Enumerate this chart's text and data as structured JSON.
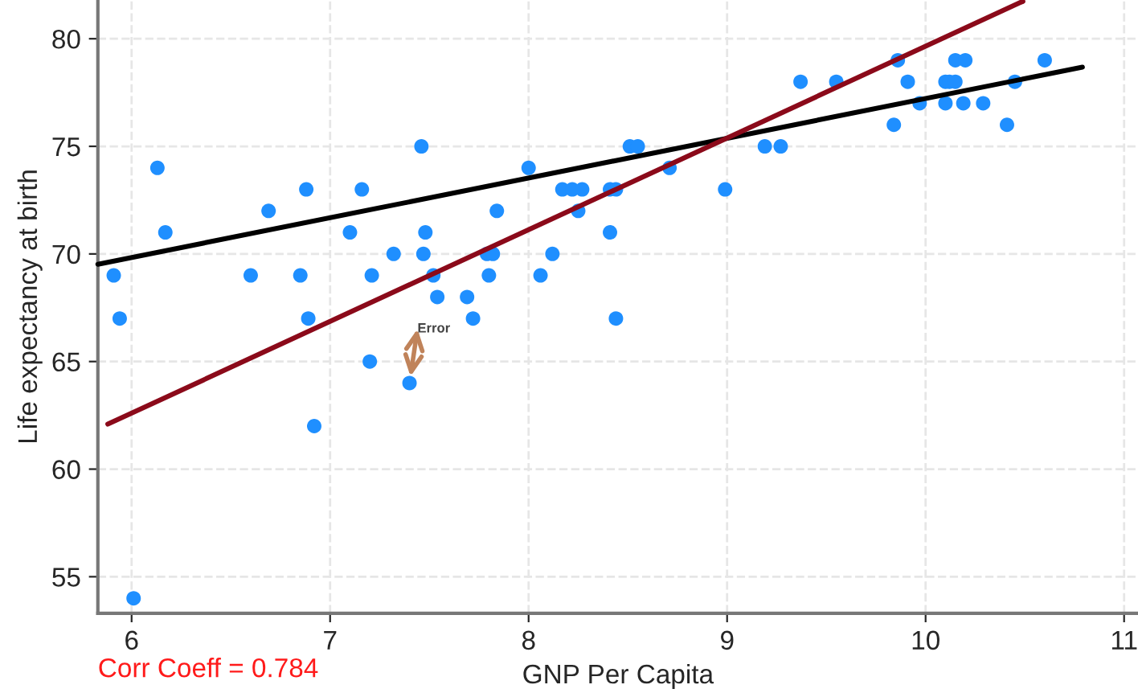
{
  "chart_data": {
    "type": "scatter",
    "xlabel": "GNP Per Capita",
    "ylabel": "Life expectancy at birth",
    "xlim": [
      5.83,
      11.07
    ],
    "ylim": [
      53.3,
      81.8
    ],
    "xticks": [
      6,
      7,
      8,
      9,
      10,
      11
    ],
    "yticks": [
      55,
      60,
      65,
      70,
      75,
      80
    ],
    "grid": true,
    "legend": false,
    "series": [
      {
        "marker": "circle",
        "color": "#1f8fff",
        "x": [
          5.91,
          5.94,
          6.01,
          6.13,
          6.17,
          6.6,
          6.69,
          6.85,
          6.88,
          6.89,
          6.92,
          7.1,
          7.16,
          7.2,
          7.21,
          7.32,
          7.4,
          7.46,
          7.47,
          7.48,
          7.52,
          7.54,
          7.69,
          7.72,
          7.79,
          7.8,
          7.82,
          7.84,
          8.0,
          8.06,
          8.12,
          8.17,
          8.22,
          8.25,
          8.27,
          8.41,
          8.41,
          8.44,
          8.44,
          8.51,
          8.55,
          8.71,
          8.99,
          9.19,
          9.27,
          9.37,
          9.55,
          9.84,
          9.86,
          9.91,
          9.97,
          10.1,
          10.1,
          10.12,
          10.15,
          10.15,
          10.19,
          10.2,
          10.29,
          10.41,
          10.45,
          10.6
        ],
        "values": [
          69,
          67,
          54,
          74,
          71,
          69,
          72,
          69,
          73,
          67,
          62,
          71,
          73,
          65,
          69,
          70,
          64,
          75,
          70,
          71,
          69,
          68,
          68,
          67,
          70,
          69,
          70,
          72,
          74,
          69,
          70,
          73,
          73,
          72,
          73,
          71,
          73,
          67,
          73,
          75,
          75,
          74,
          73,
          75,
          75,
          78,
          78,
          76,
          79,
          78,
          77,
          78,
          77,
          78,
          78,
          79,
          77,
          79,
          77,
          76,
          78,
          79
        ]
      },
      {
        "type": "line",
        "marker": "none",
        "color": "#000000",
        "x": [
          5.83,
          10.79
        ],
        "values": [
          69.52,
          78.68
        ]
      },
      {
        "type": "line",
        "marker": "none",
        "color": "#8b0a1a",
        "x": [
          5.88,
          10.49
        ],
        "values": [
          62.09,
          81.74
        ]
      }
    ],
    "annotations": [
      {
        "text": "Error",
        "x": 7.4,
        "y": 64
      },
      "Corr Coeff = 0.784"
    ]
  }
}
